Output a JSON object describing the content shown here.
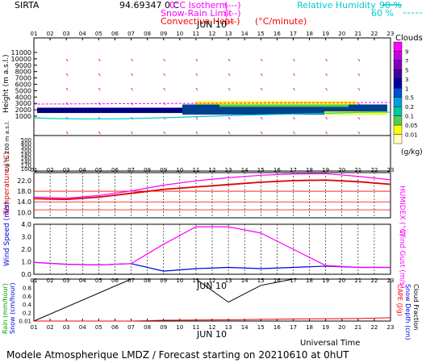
{
  "header": {
    "site": "SIRTA",
    "code": "94.69347",
    "unit_C": "0 C",
    "legend": [
      {
        "label": "0°C Isotherm",
        "symbol": "(---)",
        "color": "#ff00ff"
      },
      {
        "label": "Snow-Rain Limit",
        "symbol": "(---)",
        "color": "#ff00ff"
      },
      {
        "label": "Convective Heat",
        "symbol": "(—)",
        "extra": "(°C/minute)",
        "color": "#ff0000"
      }
    ],
    "humidity_label": "Relative Humidity",
    "humidity_levels": [
      "90 %",
      "60 %"
    ],
    "humidity_color": "#00cccc"
  },
  "footer": {
    "universal_time": "Universal Time",
    "title": "Modele Atmospherique LMDZ / Forecast starting on 20210610 at 0hUT"
  },
  "chart_data": [
    {
      "type": "heatmap",
      "title": "JUN 10",
      "x_ticks": [
        "01",
        "02",
        "03",
        "04",
        "05",
        "06",
        "07",
        "08",
        "09",
        "10",
        "11",
        "12",
        "13",
        "14",
        "15",
        "16",
        "17",
        "18",
        "19",
        "20",
        "21",
        "22",
        "23"
      ],
      "xlabel": "",
      "ylabel": "Height (m a.s.l.)",
      "y_ticks_upper": [
        11000,
        10000,
        9000,
        8000,
        7000,
        6000,
        5000,
        4000,
        3000,
        2000,
        1000
      ],
      "y_ticks_lower": [
        500,
        400,
        300,
        200,
        180,
        160,
        140,
        120,
        100
      ],
      "ylabel_lower": "Up to 200 m a.s.l.",
      "colorbar": {
        "title": "Clouds",
        "unit": "(g/kg)",
        "ticks": [
          "9",
          "7",
          "5",
          "3",
          "1",
          "0.5",
          "0.2",
          "0.1",
          "0.05",
          "0.01"
        ],
        "colors": [
          "#ff00ff",
          "#c000e0",
          "#8000c0",
          "#4000a0",
          "#0000a0",
          "#0050d0",
          "#00a0e0",
          "#00c8a0",
          "#50d050",
          "#ffff00",
          "#ffffc0"
        ]
      },
      "cloud_layer_height_m": [
        2000,
        2200
      ],
      "isotherm_height_m": 2900
    },
    {
      "type": "line",
      "x_ticks": [
        "01",
        "02",
        "03",
        "04",
        "05",
        "06",
        "07",
        "08",
        "09",
        "10",
        "11",
        "12",
        "13",
        "14",
        "15",
        "16",
        "17",
        "18",
        "19",
        "20",
        "21",
        "22",
        "23"
      ],
      "ylabel": "Temperature (°C)",
      "ylabel_right": "HUMIDEX (°C)",
      "y_ticks": [
        10.0,
        14.0,
        18.0,
        22.0
      ],
      "ylim": [
        8,
        25
      ],
      "grid_refs": [
        11,
        14,
        18
      ],
      "series": [
        {
          "name": "Temperature",
          "color": "#dd0000",
          "x": [
            1,
            3,
            5,
            7,
            9,
            11,
            13,
            15,
            17,
            19,
            21,
            23
          ],
          "values": [
            15.2,
            14.9,
            15.8,
            17.2,
            18.7,
            19.6,
            20.5,
            21.4,
            22.0,
            22.2,
            21.6,
            20.6
          ]
        },
        {
          "name": "HUMIDEX",
          "color": "#ff00ff",
          "x": [
            1,
            3,
            5,
            7,
            9,
            11,
            13,
            15,
            17,
            19,
            21,
            23
          ],
          "values": [
            15.8,
            15.4,
            16.4,
            18.1,
            20.3,
            21.9,
            23.1,
            24.0,
            24.5,
            24.6,
            23.6,
            22.3
          ]
        }
      ]
    },
    {
      "type": "line",
      "x_ticks": [
        "01",
        "02",
        "03",
        "04",
        "05",
        "06",
        "07",
        "08",
        "09",
        "10",
        "11",
        "12",
        "13",
        "14",
        "15",
        "16",
        "17",
        "18",
        "19",
        "20",
        "21",
        "22",
        "23"
      ],
      "ylabel": "Wind Speed (m/s)",
      "ylabel_right": "Wind Gust (m/s)",
      "y_ticks": [
        0.0,
        1.0,
        2.0,
        3.0,
        4.0
      ],
      "ylim": [
        0,
        4
      ],
      "series": [
        {
          "name": "Wind Speed",
          "color": "#0000dd",
          "x": [
            1,
            3,
            5,
            7,
            9,
            11,
            13,
            15,
            17,
            19,
            21,
            23
          ],
          "values": [
            0.95,
            0.8,
            0.75,
            0.85,
            0.25,
            0.45,
            0.55,
            0.45,
            0.55,
            0.65,
            0.55,
            0.55
          ]
        },
        {
          "name": "Wind Gust",
          "color": "#ff00ff",
          "x": [
            1,
            3,
            5,
            7,
            9,
            11,
            13,
            15,
            17,
            19,
            21,
            23
          ],
          "values": [
            0.95,
            0.8,
            0.75,
            0.85,
            2.4,
            3.8,
            3.8,
            3.3,
            2.0,
            0.7,
            0.55,
            0.55
          ]
        }
      ]
    },
    {
      "type": "line",
      "title": "JUN 10",
      "x_ticks": [
        "01",
        "02",
        "03",
        "04",
        "05",
        "06",
        "07",
        "08",
        "09",
        "10",
        "11",
        "12",
        "13",
        "14",
        "15",
        "16",
        "17",
        "18",
        "19",
        "20",
        "21",
        "22",
        "23"
      ],
      "ylabel": "Rain (mm/hour)",
      "ylabel_2": "Snow (cm/hour)",
      "ylabel_right": "CAPE (J/g)",
      "ylabel_right_2": "Snow Depth (cm)",
      "ylabel_right_3": "Cloud Fraction",
      "y_ticks": [
        0.01,
        0.2,
        0.4,
        0.6,
        0.8
      ],
      "ylim": [
        0,
        1
      ],
      "series": [
        {
          "name": "Cloud Fraction",
          "color": "#000000",
          "x": [
            1,
            7,
            11,
            13,
            15,
            17,
            19,
            23
          ],
          "values": [
            0.0,
            1.0,
            1.0,
            0.45,
            0.85,
            1.0,
            1.0,
            1.0
          ]
        },
        {
          "name": "CAPE",
          "color": "#ff0000",
          "x": [
            1,
            7,
            9,
            13,
            17,
            21,
            23
          ],
          "values": [
            0.0,
            0.0,
            0.02,
            0.03,
            0.05,
            0.06,
            0.08
          ]
        }
      ]
    }
  ]
}
